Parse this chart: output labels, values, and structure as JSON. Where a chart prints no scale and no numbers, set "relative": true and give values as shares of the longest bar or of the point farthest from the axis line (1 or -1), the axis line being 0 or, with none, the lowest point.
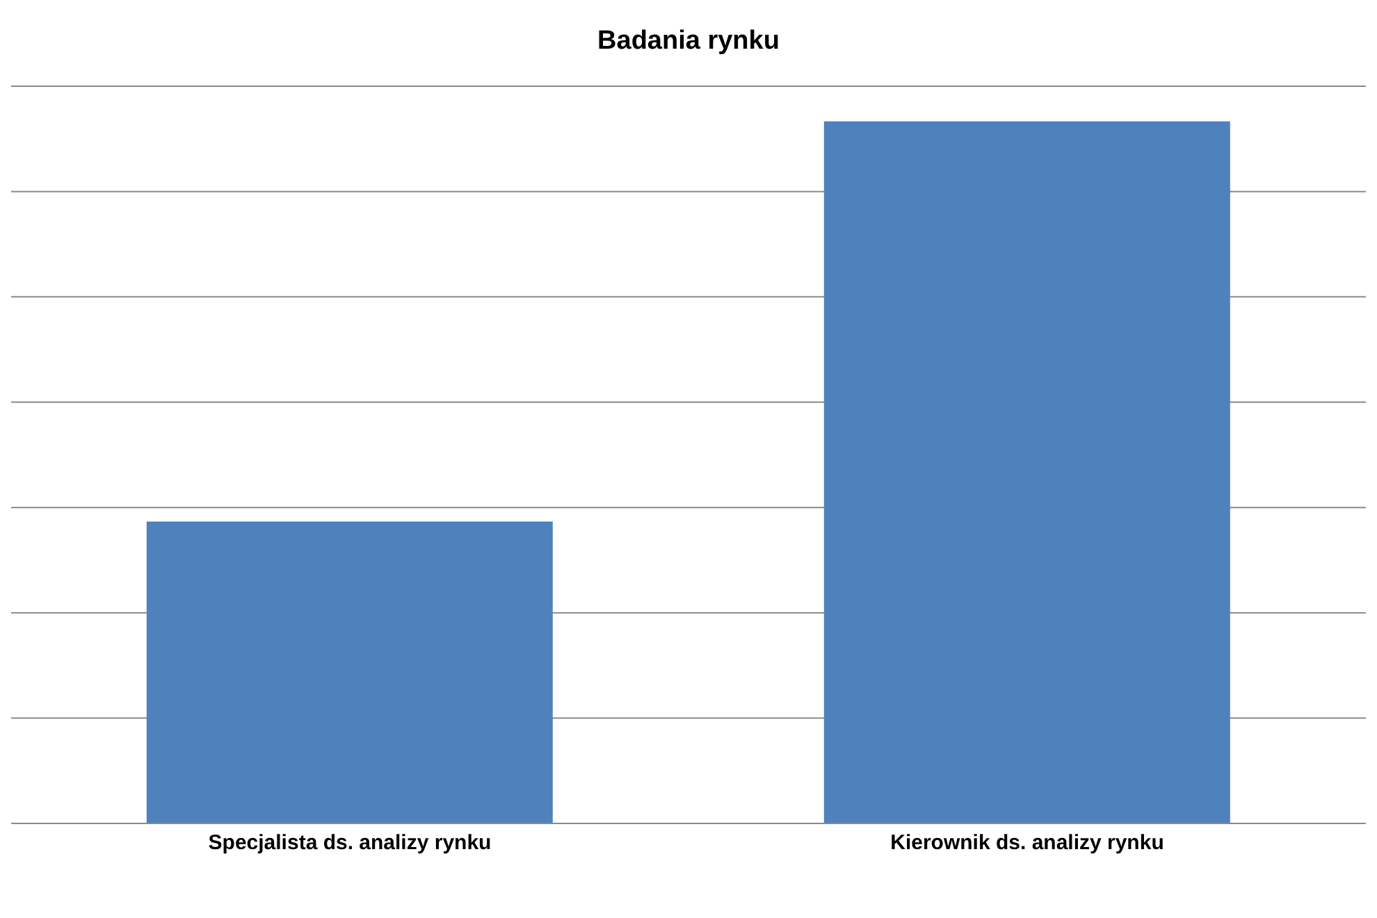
{
  "chart_data": {
    "type": "bar",
    "title": "Badania rynku",
    "categories": [
      "Specjalista ds. analizy rynku",
      "Kierownik ds. analizy rynku"
    ],
    "values": [
      0.43,
      1
    ],
    "color": "#4f81bd",
    "relative": true,
    "grid": "y"
  }
}
